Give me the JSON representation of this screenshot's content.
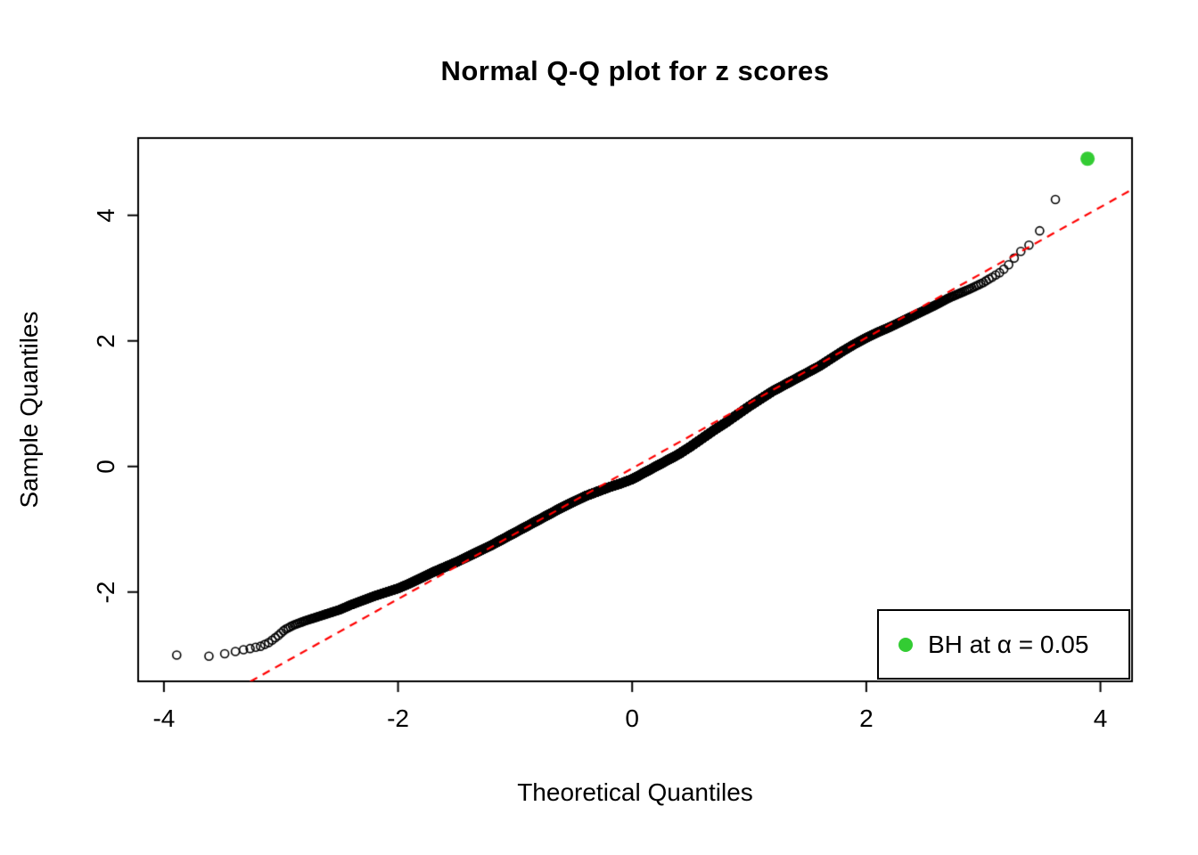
{
  "chart_data": {
    "type": "scatter",
    "subtype": "normal-qq-plot",
    "title": "Normal Q-Q plot for z scores",
    "xlabel": "Theoretical Quantiles",
    "ylabel": "Sample Quantiles",
    "x_ticks": [
      -4,
      -2,
      0,
      2,
      4
    ],
    "y_ticks": [
      -2,
      0,
      2,
      4
    ],
    "xlim": [
      -4.22,
      4.27
    ],
    "ylim": [
      -3.42,
      5.23
    ],
    "grid": false,
    "n_points": 10000,
    "marker": "open-circle",
    "marker_color": "#000000",
    "qq_curve_points": [
      [
        -3.9,
        -3.0
      ],
      [
        -3.62,
        -3.02
      ],
      [
        -3.48,
        -2.98
      ],
      [
        -3.4,
        -2.95
      ],
      [
        -3.33,
        -2.92
      ],
      [
        -3.27,
        -2.9
      ],
      [
        -3.22,
        -2.88
      ],
      [
        -3.17,
        -2.86
      ],
      [
        -3.1,
        -2.8
      ],
      [
        -3.03,
        -2.7
      ],
      [
        -2.97,
        -2.6
      ],
      [
        -2.9,
        -2.53
      ],
      [
        -2.8,
        -2.46
      ],
      [
        -2.7,
        -2.4
      ],
      [
        -2.6,
        -2.34
      ],
      [
        -2.5,
        -2.28
      ],
      [
        -2.4,
        -2.2
      ],
      [
        -2.3,
        -2.13
      ],
      [
        -2.2,
        -2.06
      ],
      [
        -2.1,
        -2.0
      ],
      [
        -2.0,
        -1.94
      ],
      [
        -1.9,
        -1.86
      ],
      [
        -1.8,
        -1.77
      ],
      [
        -1.7,
        -1.68
      ],
      [
        -1.6,
        -1.6
      ],
      [
        -1.5,
        -1.52
      ],
      [
        -1.4,
        -1.43
      ],
      [
        -1.3,
        -1.34
      ],
      [
        -1.2,
        -1.25
      ],
      [
        -1.1,
        -1.15
      ],
      [
        -1.0,
        -1.05
      ],
      [
        -0.9,
        -0.95
      ],
      [
        -0.8,
        -0.85
      ],
      [
        -0.7,
        -0.75
      ],
      [
        -0.6,
        -0.65
      ],
      [
        -0.5,
        -0.56
      ],
      [
        -0.4,
        -0.47
      ],
      [
        -0.3,
        -0.4
      ],
      [
        -0.2,
        -0.33
      ],
      [
        -0.1,
        -0.27
      ],
      [
        0.0,
        -0.2
      ],
      [
        0.1,
        -0.1
      ],
      [
        0.2,
        0.0
      ],
      [
        0.3,
        0.1
      ],
      [
        0.4,
        0.2
      ],
      [
        0.5,
        0.32
      ],
      [
        0.6,
        0.45
      ],
      [
        0.7,
        0.58
      ],
      [
        0.8,
        0.7
      ],
      [
        0.9,
        0.83
      ],
      [
        1.0,
        0.96
      ],
      [
        1.1,
        1.08
      ],
      [
        1.2,
        1.2
      ],
      [
        1.3,
        1.3
      ],
      [
        1.4,
        1.4
      ],
      [
        1.5,
        1.5
      ],
      [
        1.6,
        1.6
      ],
      [
        1.7,
        1.72
      ],
      [
        1.8,
        1.84
      ],
      [
        1.9,
        1.95
      ],
      [
        2.0,
        2.05
      ],
      [
        2.1,
        2.14
      ],
      [
        2.2,
        2.22
      ],
      [
        2.3,
        2.31
      ],
      [
        2.4,
        2.4
      ],
      [
        2.5,
        2.49
      ],
      [
        2.6,
        2.58
      ],
      [
        2.7,
        2.68
      ],
      [
        2.8,
        2.76
      ],
      [
        2.9,
        2.84
      ],
      [
        3.0,
        2.93
      ],
      [
        3.08,
        3.02
      ],
      [
        3.15,
        3.1
      ],
      [
        3.22,
        3.22
      ],
      [
        3.3,
        3.4
      ],
      [
        3.38,
        3.5
      ],
      [
        3.48,
        3.75
      ],
      [
        3.62,
        4.27
      ],
      [
        3.89,
        4.9
      ]
    ],
    "reference_line": {
      "type": "qqline",
      "style": "dashed",
      "color": "#ff0000",
      "slope": 1.04,
      "intercept": -0.03
    },
    "highlight_point": {
      "x": 3.89,
      "y": 4.9,
      "color": "#33cc33"
    },
    "legend": {
      "position": "bottom-right",
      "marker": "filled-circle",
      "marker_color": "#33cc33",
      "label": "BH at α = 0.05"
    }
  }
}
